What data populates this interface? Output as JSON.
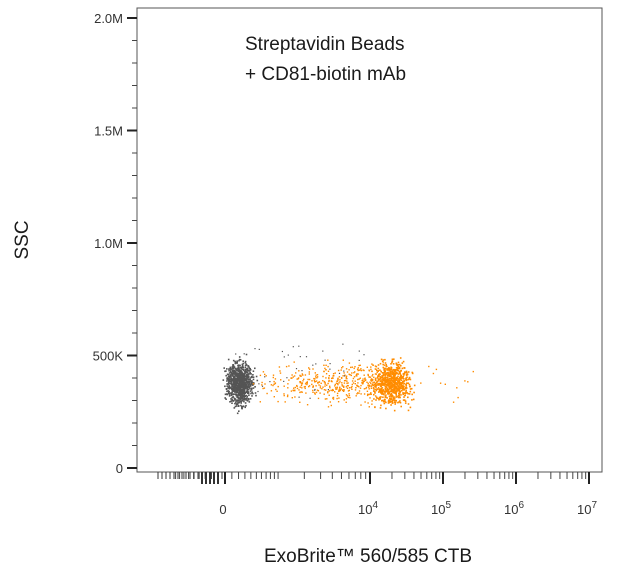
{
  "chart_data": {
    "type": "scatter",
    "xlabel": "ExoBrite™ 560/585 CTB",
    "ylabel": "SSC",
    "ylim": [
      0,
      2000000
    ],
    "x_scale": "biexponential",
    "y_ticks": [
      {
        "value": 0,
        "label": "0"
      },
      {
        "value": 500000,
        "label": "500K"
      },
      {
        "value": 1000000,
        "label": "1.0M"
      },
      {
        "value": 1500000,
        "label": "1.5M"
      },
      {
        "value": 2000000,
        "label": "2.0M"
      }
    ],
    "x_ticks": [
      {
        "value": 0,
        "base": "0",
        "exp": ""
      },
      {
        "value": 10000,
        "base": "10",
        "exp": "4"
      },
      {
        "value": 100000,
        "base": "10",
        "exp": "5"
      },
      {
        "value": 1000000,
        "base": "10",
        "exp": "6"
      },
      {
        "value": 10000000,
        "base": "10",
        "exp": "7"
      }
    ],
    "annotation": [
      "Streptavidin Beads",
      "+ CD81-biotin mAb"
    ],
    "grid": false,
    "series": [
      {
        "color": "#555555",
        "description_points": "negative bead population near 0",
        "cluster": {
          "x_center": 0,
          "y_center": 380000,
          "y_spread": 45000
        }
      },
      {
        "color": "#ff8c00",
        "cluster": {
          "x_center": 20000,
          "y_center": 380000,
          "y_spread": 45000
        },
        "tail_from": 800
      }
    ]
  }
}
